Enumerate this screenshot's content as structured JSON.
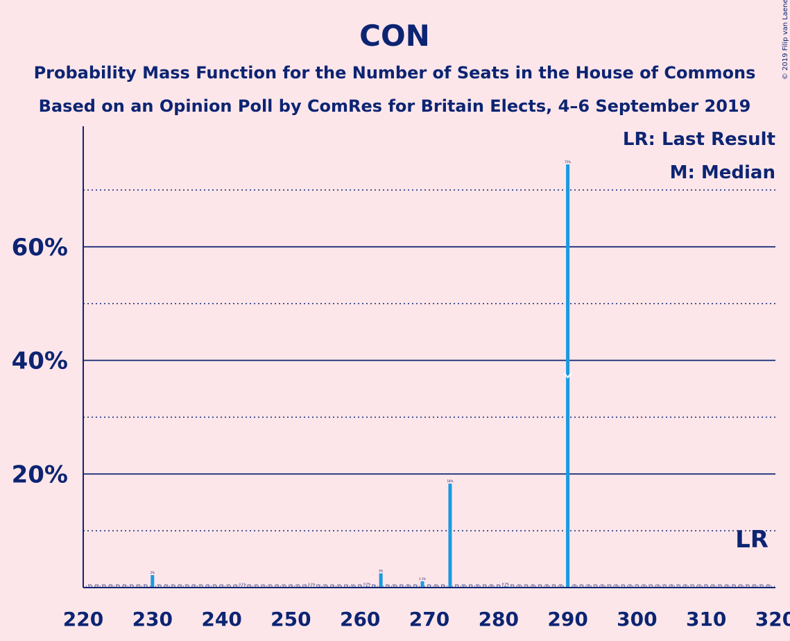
{
  "chart_data": {
    "type": "bar",
    "title": "CON",
    "subtitle_line1": "Probability Mass Function for the Number of Seats in the House of Commons",
    "subtitle_line2": "Based on an Opinion Poll by ComRes for Britain Elects, 4–6 September 2019",
    "legend": {
      "last_result": "LR: Last Result",
      "median": "M: Median"
    },
    "last_result_marker": "LR",
    "copyright": "© 2019 Filip van Laenen",
    "xlim": [
      220,
      320
    ],
    "ylim": [
      0,
      80
    ],
    "x_ticks": [
      220,
      230,
      240,
      250,
      260,
      270,
      280,
      290,
      300,
      310,
      320
    ],
    "y_ticks_labeled": [
      {
        "value": 20,
        "label": "20%"
      },
      {
        "value": 40,
        "label": "40%"
      },
      {
        "value": 60,
        "label": "60%"
      }
    ],
    "y_gridlines_dotted": [
      10,
      30,
      50,
      70
    ],
    "median_seat": 290,
    "last_result_seat": 317,
    "bar_color": "#1a9ae0",
    "axis_color": "#0c2472",
    "background_color": "#fde6ea",
    "bars": [
      {
        "x": 230,
        "value": 2.2,
        "label": "2%"
      },
      {
        "x": 243,
        "value": 0.1,
        "label": "0.1%"
      },
      {
        "x": 253,
        "value": 0.1,
        "label": "0.1%"
      },
      {
        "x": 261,
        "value": 0.2,
        "label": "0.2%"
      },
      {
        "x": 263,
        "value": 2.5,
        "label": "3%"
      },
      {
        "x": 269,
        "value": 1.1,
        "label": "1.1%"
      },
      {
        "x": 273,
        "value": 18.3,
        "label": "18%"
      },
      {
        "x": 281,
        "value": 0.2,
        "label": "0.2%"
      },
      {
        "x": 290,
        "value": 74.5,
        "label": "75%"
      }
    ]
  }
}
